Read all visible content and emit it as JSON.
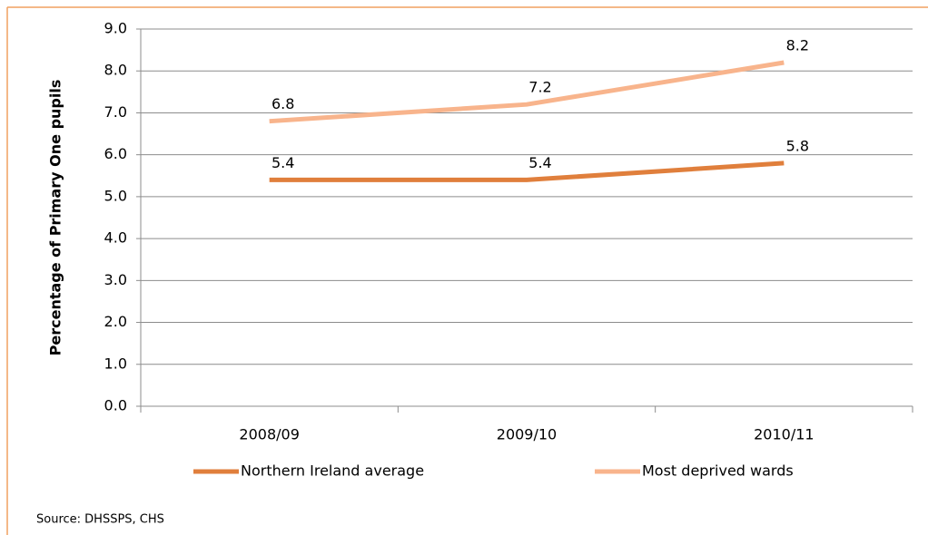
{
  "chart_data": {
    "type": "line",
    "y_label": "Percentage of Primary One pupils",
    "categories": [
      "2008/09",
      "2009/10",
      "2010/11"
    ],
    "series": [
      {
        "name": "Northern Ireland average",
        "color": "#e07f3c",
        "values": [
          5.4,
          5.4,
          5.8
        ]
      },
      {
        "name": "Most deprived wards",
        "color": "#f8b48c",
        "values": [
          6.8,
          7.2,
          8.2
        ]
      }
    ],
    "ylim": [
      0,
      9
    ],
    "yticks": [
      {
        "value": 0,
        "label": "0.0"
      },
      {
        "value": 1,
        "label": "1.0"
      },
      {
        "value": 2,
        "label": "2.0"
      },
      {
        "value": 3,
        "label": "3.0"
      },
      {
        "value": 4,
        "label": "4.0"
      },
      {
        "value": 5,
        "label": "5.0"
      },
      {
        "value": 6,
        "label": "6.0"
      },
      {
        "value": 7,
        "label": "7.0"
      },
      {
        "value": 8,
        "label": "8.0"
      },
      {
        "value": 9,
        "label": "9.0"
      }
    ],
    "grid": true,
    "legend": "bottom",
    "source": "Source: DHSSPS, CHS"
  }
}
